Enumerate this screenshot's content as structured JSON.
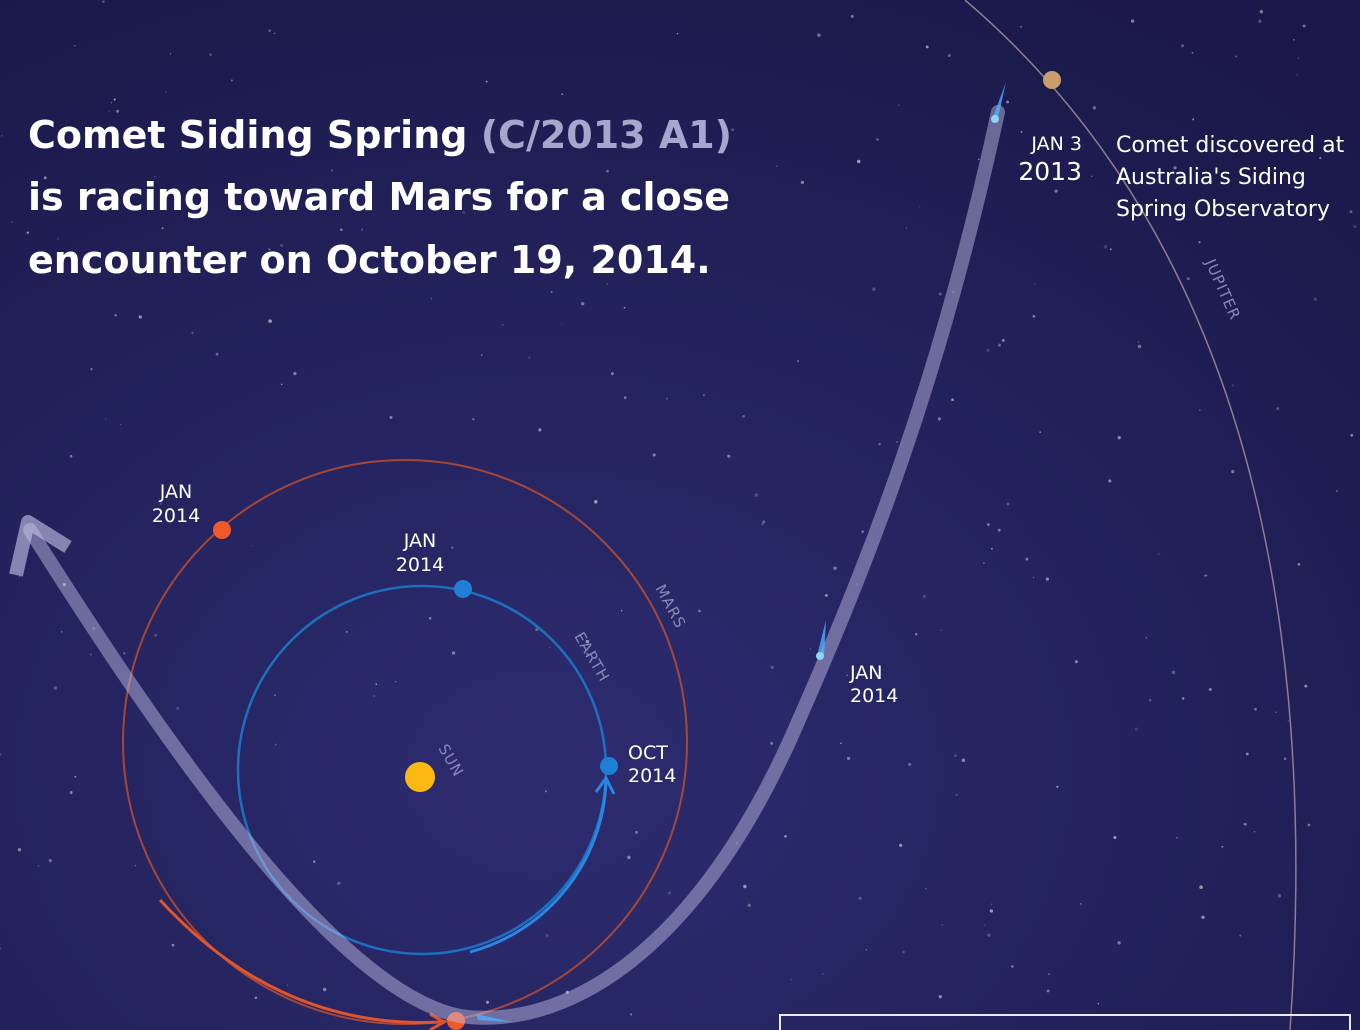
{
  "title": {
    "name": "Comet Siding Spring",
    "designation": "(C/2013 A1)",
    "lines": [
      "is racing toward Mars for a close",
      "encounter on October 19, 2014."
    ]
  },
  "discovery": {
    "date": [
      "JAN 3",
      "2013"
    ],
    "note": [
      "Comet discovered at",
      "Australia's Siding",
      "Spring Observatory"
    ]
  },
  "orbits": {
    "jupiter": "JUPITER",
    "mars": "MARS",
    "earth": "EARTH",
    "sun": "SUN"
  },
  "dates": {
    "mars_jan": [
      "JAN",
      "2014"
    ],
    "earth_jan": [
      "JAN",
      "2014"
    ],
    "earth_oct": [
      "OCT",
      "2014"
    ],
    "comet_jan": [
      "JAN",
      "2014"
    ]
  }
}
